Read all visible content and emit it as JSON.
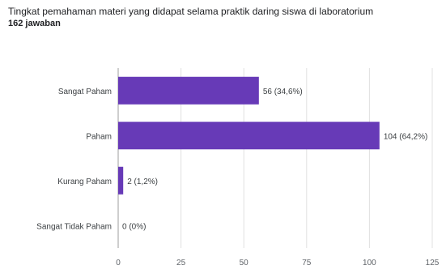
{
  "title": "Tingkat pemahaman materi yang didapat selama praktik daring siswa di laboratorium",
  "subtitle": "162 jawaban",
  "accent_color": "#673ab7",
  "chart_data": {
    "type": "bar",
    "orientation": "horizontal",
    "categories": [
      "Sangat Paham",
      "Paham",
      "Kurang Paham",
      "Sangat Tidak Paham"
    ],
    "values": [
      56,
      104,
      2,
      0
    ],
    "value_labels": [
      "56 (34,6%)",
      "104 (64,2%)",
      "2 (1,2%)",
      "0 (0%)"
    ],
    "x_ticks": [
      0,
      25,
      50,
      75,
      100,
      125
    ],
    "xlim": [
      0,
      125
    ],
    "grid": true,
    "legend": "none"
  }
}
